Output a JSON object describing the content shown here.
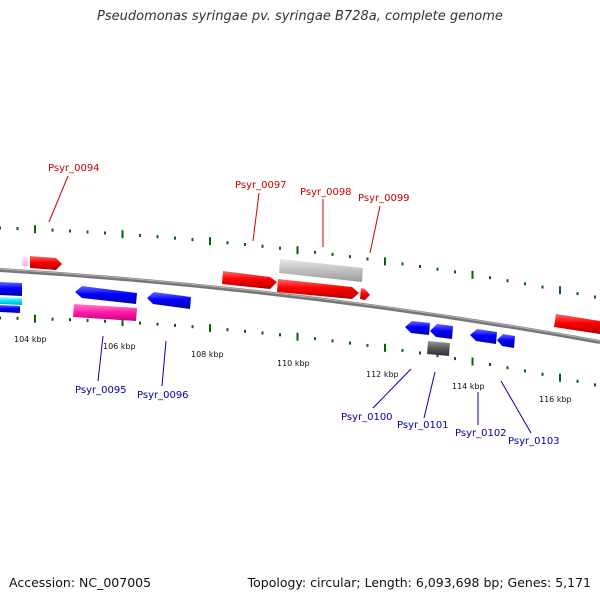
{
  "title": "Pseudomonas syringae pv. syringae B728a, complete genome",
  "footer": {
    "accession": "Accession: NC_007005",
    "summary": "Topology: circular; Length: 6,093,698 bp; Genes: 5,171"
  },
  "scale_labels": [
    "104 kbp",
    "106 kbp",
    "108 kbp",
    "110 kbp",
    "112 kbp",
    "114 kbp",
    "116 kbp"
  ],
  "genes_top": [
    "Psyr_0094",
    "Psyr_0097",
    "Psyr_0098",
    "Psyr_0099"
  ],
  "genes_bottom": [
    "Psyr_0095",
    "Psyr_0096",
    "Psyr_0100",
    "Psyr_0101",
    "Psyr_0102",
    "Psyr_0103"
  ],
  "colors": {
    "forward_cds": "#ff0000",
    "reverse_cds": "#0000ff",
    "label_top": "#cc0000",
    "label_bottom": "#0000aa",
    "tick": "#006600",
    "backbone": "#808080"
  }
}
